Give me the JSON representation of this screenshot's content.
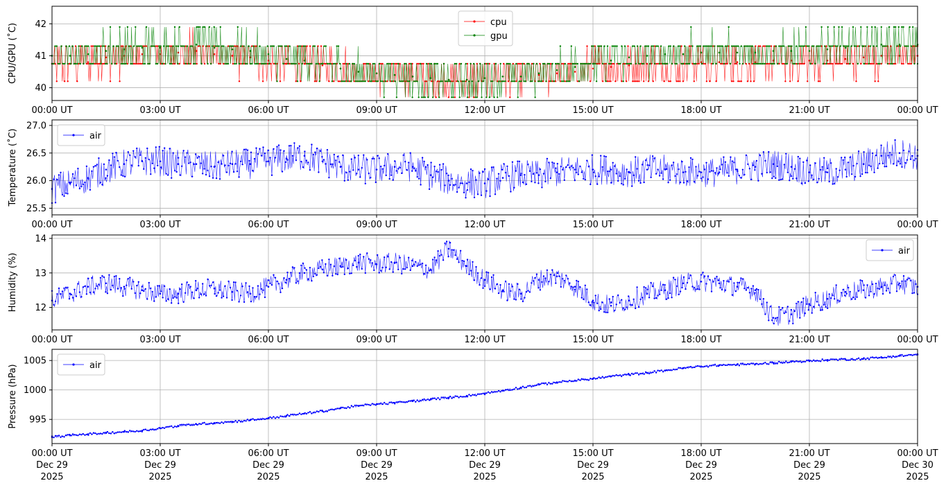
{
  "chart_data": [
    {
      "type": "line",
      "ylabel": "CPU/GPU (˚C)",
      "xlim": [
        "2025-12-29T00:00Z",
        "2025-12-30T00:00Z"
      ],
      "ylim": [
        39.6,
        42.55
      ],
      "yticks": [
        40,
        41,
        42
      ],
      "xticks": [
        "00:00 UT",
        "03:00 UT",
        "06:00 UT",
        "09:00 UT",
        "12:00 UT",
        "15:00 UT",
        "18:00 UT",
        "21:00 UT",
        "00:00 UT"
      ],
      "grid": true,
      "legend_position": "top-center",
      "series": [
        {
          "name": "cpu",
          "color": "#ff0000",
          "x_hours": [
            0,
            0.5,
            1,
            1.5,
            2,
            2.5,
            3,
            3.5,
            4,
            4.5,
            5,
            5.5,
            6,
            6.5,
            7,
            7.5,
            8,
            8.5,
            9,
            9.5,
            10,
            10.5,
            11,
            11.5,
            12,
            12.5,
            13,
            13.5,
            14,
            14.5,
            15,
            15.5,
            16,
            16.5,
            17,
            17.5,
            18,
            18.5,
            19,
            19.5,
            20,
            20.5,
            21,
            21.5,
            22,
            22.5,
            23,
            23.5,
            24
          ],
          "values": [
            40.75,
            40.75,
            40.8,
            40.95,
            41.0,
            41.05,
            41.05,
            41.1,
            41.15,
            41.05,
            41.0,
            40.95,
            40.85,
            40.75,
            40.75,
            40.7,
            40.6,
            40.5,
            40.45,
            40.4,
            40.35,
            40.3,
            40.25,
            40.25,
            40.3,
            40.35,
            40.35,
            40.4,
            40.45,
            40.5,
            40.6,
            40.65,
            40.7,
            40.75,
            40.75,
            40.75,
            40.8,
            40.8,
            40.8,
            40.8,
            40.85,
            40.85,
            40.85,
            40.85,
            40.9,
            40.95,
            41.0,
            41.0,
            41.0
          ]
        },
        {
          "name": "gpu",
          "color": "#008000",
          "x_hours": [
            0,
            0.5,
            1,
            1.5,
            2,
            2.5,
            3,
            3.5,
            4,
            4.5,
            5,
            5.5,
            6,
            6.5,
            7,
            7.5,
            8,
            8.5,
            9,
            9.5,
            10,
            10.5,
            11,
            11.5,
            12,
            12.5,
            13,
            13.5,
            14,
            14.5,
            15,
            15.5,
            16,
            16.5,
            17,
            17.5,
            18,
            18.5,
            19,
            19.5,
            20,
            20.5,
            21,
            21.5,
            22,
            22.5,
            23,
            23.5,
            24
          ],
          "values": [
            41.0,
            41.0,
            41.05,
            41.15,
            41.2,
            41.25,
            41.25,
            41.3,
            41.35,
            41.25,
            41.2,
            41.15,
            41.05,
            40.9,
            40.85,
            40.75,
            40.6,
            40.5,
            40.45,
            40.4,
            40.35,
            40.3,
            40.25,
            40.25,
            40.3,
            40.35,
            40.35,
            40.45,
            40.55,
            40.65,
            40.75,
            40.85,
            40.95,
            41.0,
            41.05,
            41.05,
            41.1,
            41.1,
            41.1,
            41.1,
            41.15,
            41.15,
            41.15,
            41.2,
            41.25,
            41.3,
            41.35,
            41.35,
            41.35
          ]
        }
      ]
    },
    {
      "type": "line",
      "ylabel": "Temperature (˚C)",
      "xlim": [
        "2025-12-29T00:00Z",
        "2025-12-30T00:00Z"
      ],
      "ylim": [
        25.38,
        27.1
      ],
      "yticks": [
        25.5,
        26.0,
        26.5,
        27.0
      ],
      "xticks": [
        "00:00 UT",
        "03:00 UT",
        "06:00 UT",
        "09:00 UT",
        "12:00 UT",
        "15:00 UT",
        "18:00 UT",
        "21:00 UT",
        "00:00 UT"
      ],
      "grid": true,
      "legend_position": "top-left",
      "series": [
        {
          "name": "air",
          "color": "#0000ff",
          "x_hours": [
            0,
            0.5,
            1,
            1.5,
            2,
            2.5,
            3,
            3.5,
            4,
            4.5,
            5,
            5.5,
            6,
            6.5,
            7,
            7.5,
            8,
            8.5,
            9,
            9.5,
            10,
            10.5,
            11,
            11.5,
            12,
            12.5,
            13,
            13.5,
            14,
            14.5,
            15,
            15.5,
            16,
            16.5,
            17,
            17.5,
            18,
            18.5,
            19,
            19.5,
            20,
            20.5,
            21,
            21.5,
            22,
            22.5,
            23,
            23.5,
            24
          ],
          "values": [
            25.85,
            25.95,
            26.05,
            26.2,
            26.3,
            26.35,
            26.35,
            26.3,
            26.3,
            26.25,
            26.3,
            26.3,
            26.35,
            26.4,
            26.45,
            26.35,
            26.25,
            26.2,
            26.2,
            26.25,
            26.25,
            26.1,
            26.0,
            25.95,
            25.95,
            26.05,
            26.1,
            26.1,
            26.15,
            26.2,
            26.2,
            26.2,
            26.15,
            26.2,
            26.2,
            26.15,
            26.15,
            26.15,
            26.2,
            26.25,
            26.3,
            26.25,
            26.15,
            26.15,
            26.2,
            26.3,
            26.45,
            26.5,
            26.45
          ]
        }
      ]
    },
    {
      "type": "line",
      "ylabel": "Humidity (%)",
      "xlim": [
        "2025-12-29T00:00Z",
        "2025-12-30T00:00Z"
      ],
      "ylim": [
        11.35,
        14.1
      ],
      "yticks": [
        12,
        13,
        14
      ],
      "xticks": [
        "00:00 UT",
        "03:00 UT",
        "06:00 UT",
        "09:00 UT",
        "12:00 UT",
        "15:00 UT",
        "18:00 UT",
        "21:00 UT",
        "00:00 UT"
      ],
      "grid": true,
      "legend_position": "top-right",
      "series": [
        {
          "name": "air",
          "color": "#0000ff",
          "x_hours": [
            0,
            0.5,
            1,
            1.5,
            2,
            2.5,
            3,
            3.5,
            4,
            4.5,
            5,
            5.5,
            6,
            6.5,
            7,
            7.5,
            8,
            8.5,
            9,
            9.5,
            10,
            10.5,
            11,
            11.5,
            12,
            12.5,
            13,
            13.5,
            14,
            14.5,
            15,
            15.5,
            16,
            16.5,
            17,
            17.5,
            18,
            18.5,
            19,
            19.5,
            20,
            20.5,
            21,
            21.5,
            22,
            22.5,
            23,
            23.5,
            24
          ],
          "values": [
            12.2,
            12.4,
            12.6,
            12.7,
            12.6,
            12.5,
            12.4,
            12.4,
            12.5,
            12.55,
            12.45,
            12.4,
            12.6,
            12.8,
            13.0,
            13.1,
            13.2,
            13.3,
            13.25,
            13.3,
            13.2,
            13.1,
            13.7,
            13.2,
            12.8,
            12.5,
            12.4,
            12.8,
            12.9,
            12.6,
            12.2,
            12.05,
            12.2,
            12.4,
            12.5,
            12.7,
            12.75,
            12.7,
            12.6,
            12.5,
            11.7,
            11.8,
            12.1,
            12.25,
            12.45,
            12.5,
            12.6,
            12.7,
            12.6
          ]
        }
      ]
    },
    {
      "type": "line",
      "ylabel": "Pressure (hPa)",
      "xlim": [
        "2025-12-29T00:00Z",
        "2025-12-30T00:00Z"
      ],
      "ylim": [
        990.9,
        1006.9
      ],
      "yticks": [
        995,
        1000,
        1005
      ],
      "xticks": [
        "00:00 UT",
        "03:00 UT",
        "06:00 UT",
        "09:00 UT",
        "12:00 UT",
        "15:00 UT",
        "18:00 UT",
        "21:00 UT",
        "00:00 UT"
      ],
      "xtick_dates": [
        "Dec 29",
        "Dec 29",
        "Dec 29",
        "Dec 29",
        "Dec 29",
        "Dec 29",
        "Dec 29",
        "Dec 29",
        "Dec 30"
      ],
      "xtick_years": [
        "2025",
        "2025",
        "2025",
        "2025",
        "2025",
        "2025",
        "2025",
        "2025",
        "2025"
      ],
      "grid": true,
      "legend_position": "top-left",
      "series": [
        {
          "name": "air",
          "color": "#0000ff",
          "x_hours": [
            0,
            0.5,
            1,
            1.5,
            2,
            2.5,
            3,
            3.5,
            4,
            4.5,
            5,
            5.5,
            6,
            6.5,
            7,
            7.5,
            8,
            8.5,
            9,
            9.5,
            10,
            10.5,
            11,
            11.5,
            12,
            12.5,
            13,
            13.5,
            14,
            14.5,
            15,
            15.5,
            16,
            16.5,
            17,
            17.5,
            18,
            18.5,
            19,
            19.5,
            20,
            20.5,
            21,
            21.5,
            22,
            22.5,
            23,
            23.5,
            24
          ],
          "values": [
            992.0,
            992.3,
            992.5,
            992.7,
            992.9,
            993.1,
            993.5,
            993.9,
            994.2,
            994.4,
            994.6,
            994.9,
            995.2,
            995.6,
            996.0,
            996.4,
            996.9,
            997.3,
            997.6,
            997.8,
            998.1,
            998.4,
            998.7,
            999.0,
            999.4,
            999.9,
            1000.4,
            1000.9,
            1001.3,
            1001.6,
            1001.9,
            1002.3,
            1002.6,
            1002.9,
            1003.3,
            1003.7,
            1004.0,
            1004.2,
            1004.3,
            1004.4,
            1004.6,
            1004.8,
            1004.9,
            1005.1,
            1005.2,
            1005.3,
            1005.5,
            1005.8,
            1006.0
          ]
        }
      ]
    }
  ]
}
